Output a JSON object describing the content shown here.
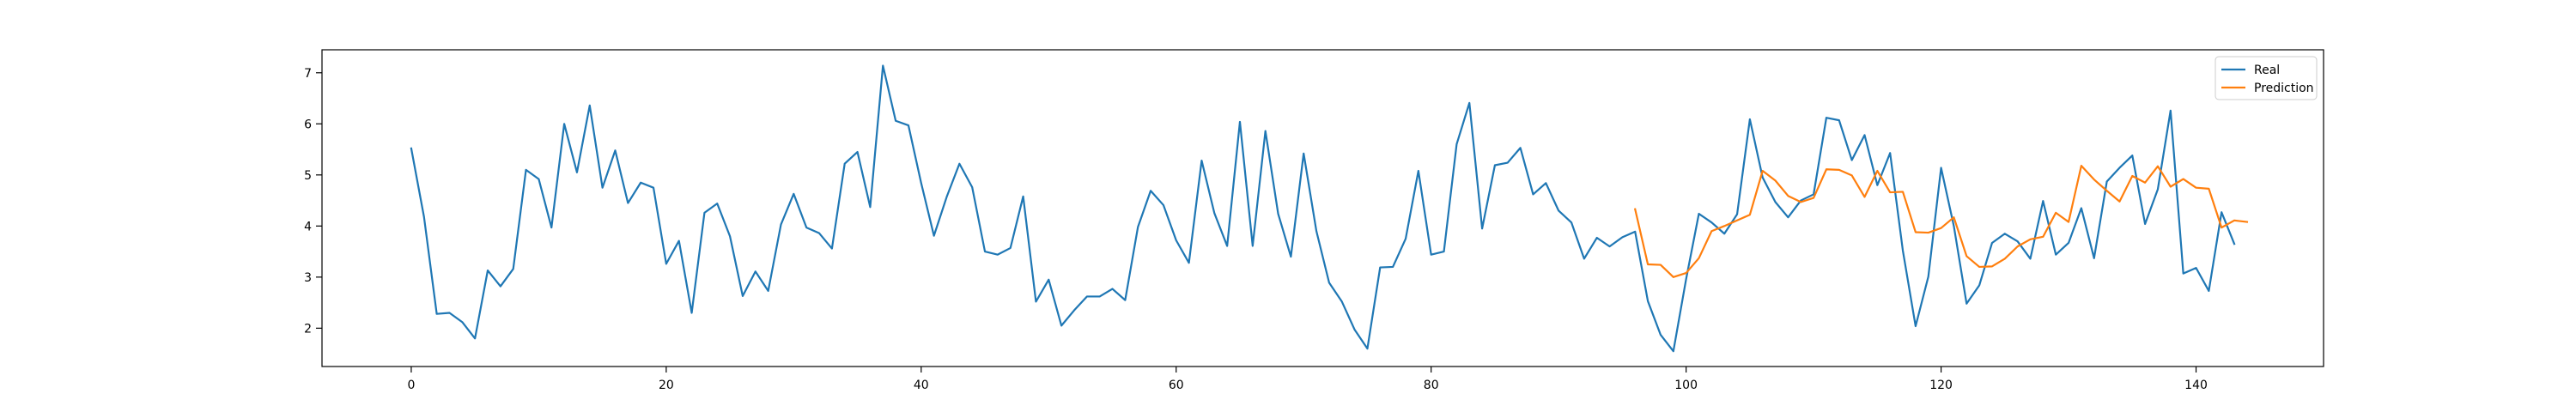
{
  "chart_data": {
    "type": "line",
    "title": "",
    "xlabel": "",
    "ylabel": "",
    "xlim": [
      -7,
      150
    ],
    "ylim": [
      1.25,
      7.45
    ],
    "x_ticks": [
      0,
      20,
      40,
      60,
      80,
      100,
      120,
      140
    ],
    "y_ticks": [
      2,
      3,
      4,
      5,
      6,
      7
    ],
    "grid": false,
    "legend_position": "top-right",
    "series": [
      {
        "name": "Real",
        "color": "#1f77b4",
        "x_start": 0,
        "values": [
          5.52,
          4.18,
          2.28,
          2.3,
          2.12,
          1.8,
          3.13,
          2.82,
          3.16,
          5.1,
          4.92,
          3.97,
          6.0,
          5.05,
          6.36,
          4.75,
          5.48,
          4.45,
          4.85,
          4.75,
          3.26,
          3.71,
          2.3,
          4.26,
          4.44,
          3.8,
          2.63,
          3.11,
          2.73,
          4.03,
          4.63,
          3.97,
          3.86,
          3.56,
          5.22,
          5.45,
          4.37,
          7.14,
          6.06,
          5.97,
          4.84,
          3.81,
          4.57,
          5.22,
          4.76,
          3.5,
          3.44,
          3.57,
          4.58,
          2.52,
          2.95,
          2.05,
          2.35,
          2.62,
          2.62,
          2.77,
          2.55,
          3.98,
          4.69,
          4.41,
          3.72,
          3.28,
          5.28,
          4.25,
          3.61,
          6.04,
          3.61,
          5.86,
          4.24,
          3.4,
          5.42,
          3.9,
          2.89,
          2.52,
          1.97,
          1.6,
          3.19,
          3.2,
          3.75,
          5.08,
          3.44,
          3.5,
          5.6,
          6.41,
          3.95,
          5.19,
          5.24,
          5.53,
          4.62,
          4.84,
          4.3,
          4.07,
          3.36,
          3.77,
          3.6,
          3.78,
          3.89,
          2.53,
          1.87,
          1.55,
          2.96,
          4.24,
          4.07,
          3.85,
          4.23,
          6.09,
          4.95,
          4.47,
          4.17,
          4.5,
          4.62,
          6.12,
          6.07,
          5.29,
          5.78,
          4.8,
          5.43,
          3.52,
          2.04,
          3.01,
          5.14,
          4.0,
          2.48,
          2.84,
          3.67,
          3.85,
          3.7,
          3.36,
          4.49,
          3.44,
          3.67,
          4.35,
          3.37,
          4.87,
          5.14,
          5.38,
          4.04,
          4.72,
          6.26,
          3.07,
          3.18,
          2.73,
          4.27,
          3.65
        ]
      },
      {
        "name": "Prediction",
        "color": "#ff7f0e",
        "x_start": 96,
        "values": [
          4.33,
          3.25,
          3.24,
          3.0,
          3.08,
          3.37,
          3.9,
          4.0,
          4.11,
          4.22,
          5.08,
          4.89,
          4.59,
          4.47,
          4.55,
          5.11,
          5.1,
          4.99,
          4.57,
          5.08,
          4.66,
          4.67,
          3.88,
          3.87,
          3.96,
          4.17,
          3.41,
          3.2,
          3.21,
          3.36,
          3.6,
          3.74,
          3.79,
          4.26,
          4.08,
          5.18,
          4.91,
          4.69,
          4.48,
          4.98,
          4.85,
          5.17,
          4.77,
          4.92,
          4.75,
          4.73,
          3.97,
          4.11,
          4.08
        ]
      }
    ]
  }
}
